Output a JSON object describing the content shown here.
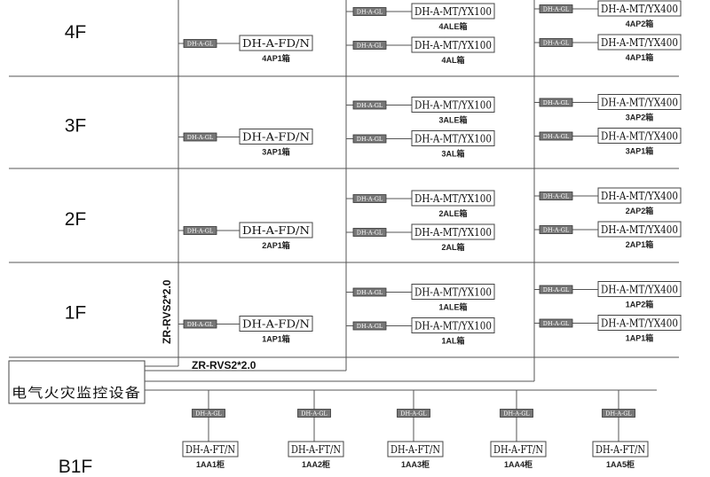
{
  "floors": [
    {
      "label": "4F",
      "ap1": {
        "model": "DH-A-FD/N",
        "name": "4AP1箱"
      },
      "mid": [
        {
          "model": "DH-A-MT/YX100",
          "name": "4ALE箱"
        },
        {
          "model": "DH-A-MT/YX100",
          "name": "4AL箱"
        }
      ],
      "right": [
        {
          "model": "DH-A-MT/YX400",
          "name": "4AP2箱"
        },
        {
          "model": "DH-A-MT/YX400",
          "name": "4AP1箱"
        }
      ]
    },
    {
      "label": "3F",
      "ap1": {
        "model": "DH-A-FD/N",
        "name": "3AP1箱"
      },
      "mid": [
        {
          "model": "DH-A-MT/YX100",
          "name": "3ALE箱"
        },
        {
          "model": "DH-A-MT/YX100",
          "name": "3AL箱"
        }
      ],
      "right": [
        {
          "model": "DH-A-MT/YX400",
          "name": "3AP2箱"
        },
        {
          "model": "DH-A-MT/YX400",
          "name": "3AP1箱"
        }
      ]
    },
    {
      "label": "2F",
      "ap1": {
        "model": "DH-A-FD/N",
        "name": "2AP1箱"
      },
      "mid": [
        {
          "model": "DH-A-MT/YX100",
          "name": "2ALE箱"
        },
        {
          "model": "DH-A-MT/YX100",
          "name": "2AL箱"
        }
      ],
      "right": [
        {
          "model": "DH-A-MT/YX400",
          "name": "2AP2箱"
        },
        {
          "model": "DH-A-MT/YX400",
          "name": "2AP1箱"
        }
      ]
    },
    {
      "label": "1F",
      "ap1": {
        "model": "DH-A-FD/N",
        "name": "1AP1箱"
      },
      "mid": [
        {
          "model": "DH-A-MT/YX100",
          "name": "1ALE箱"
        },
        {
          "model": "DH-A-MT/YX100",
          "name": "1AL箱"
        }
      ],
      "right": [
        {
          "model": "DH-A-MT/YX400",
          "name": "1AP2箱"
        },
        {
          "model": "DH-A-MT/YX400",
          "name": "1AP1箱"
        }
      ]
    }
  ],
  "sensor_label": "DH-A-GL",
  "cable_vertical": "ZR-RVS2*2.0",
  "cable_horizontal": "ZR-RVS2*2.0",
  "controller": "电气火灾监控设备",
  "basement": {
    "label": "B1F",
    "cabinets": [
      {
        "model": "DH-A-FT/N",
        "name": "1AA1柜"
      },
      {
        "model": "DH-A-FT/N",
        "name": "1AA2柜"
      },
      {
        "model": "DH-A-FT/N",
        "name": "1AA3柜"
      },
      {
        "model": "DH-A-FT/N",
        "name": "1AA4柜"
      },
      {
        "model": "DH-A-FT/N",
        "name": "1AA5柜"
      }
    ]
  }
}
